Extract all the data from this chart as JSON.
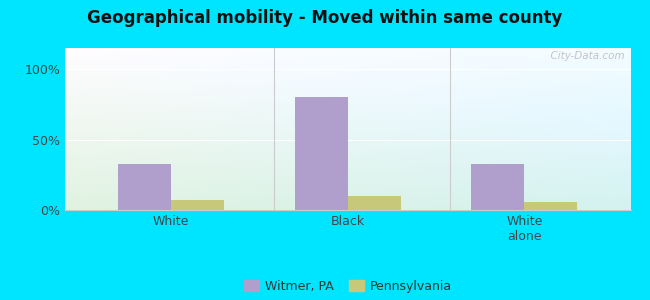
{
  "title": "Geographical mobility - Moved within same county",
  "categories": [
    "White",
    "Black",
    "White\nalone"
  ],
  "witmer_values": [
    33,
    80,
    33
  ],
  "pa_values": [
    7,
    10,
    6
  ],
  "witmer_color": "#b09fcc",
  "pa_color": "#c8c87a",
  "outer_bg": "#00e5ff",
  "yticks": [
    0,
    50,
    100
  ],
  "ylabels": [
    "0%",
    "50%",
    "100%"
  ],
  "ylim": [
    0,
    115
  ],
  "bar_width": 0.3,
  "legend_labels": [
    "Witmer, PA",
    "Pennsylvania"
  ],
  "watermark": "  City-Data.com"
}
